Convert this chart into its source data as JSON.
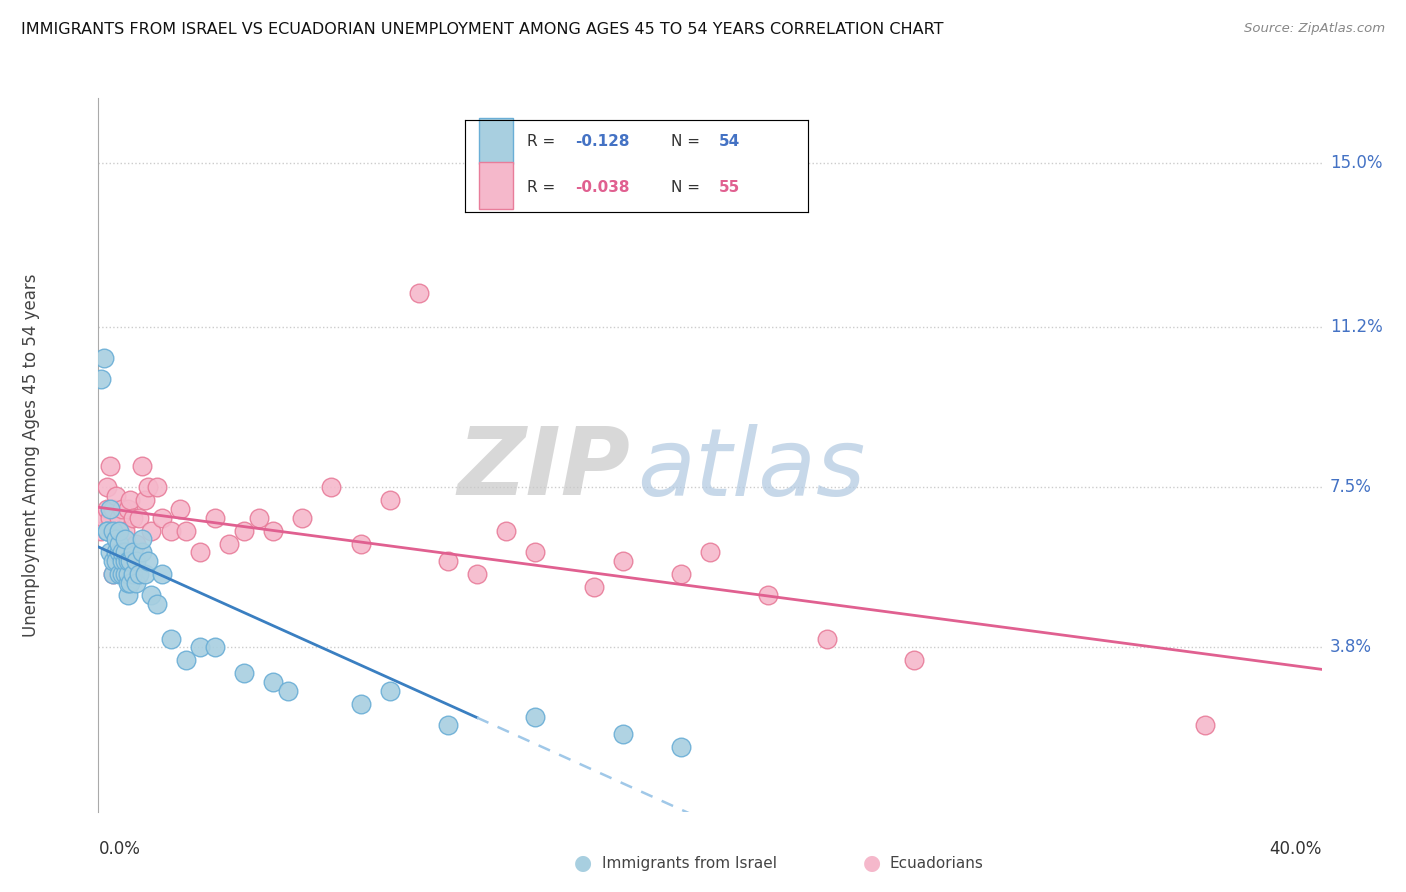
{
  "title": "IMMIGRANTS FROM ISRAEL VS ECUADORIAN UNEMPLOYMENT AMONG AGES 45 TO 54 YEARS CORRELATION CHART",
  "source": "Source: ZipAtlas.com",
  "ylabel_label": "Unemployment Among Ages 45 to 54 years",
  "legend_labels": [
    "Immigrants from Israel",
    "Ecuadorians"
  ],
  "blue_R_val": "-0.128",
  "blue_N_val": "54",
  "pink_R_val": "-0.038",
  "pink_N_val": "55",
  "blue_color": "#a8cfe0",
  "pink_color": "#f5b8cb",
  "blue_edge_color": "#6aaed6",
  "pink_edge_color": "#e87d9a",
  "blue_line_color": "#3a7fc1",
  "pink_line_color": "#e06090",
  "blue_dash_color": "#a0c8e8",
  "watermark_zip_color": "#c8c8c8",
  "watermark_atlas_color": "#b0c8e0",
  "ylim": [
    0.0,
    0.165
  ],
  "xlim": [
    0.0,
    0.42
  ],
  "y_ticks": [
    0.038,
    0.075,
    0.112,
    0.15
  ],
  "y_tick_labels": [
    "3.8%",
    "7.5%",
    "11.2%",
    "15.0%"
  ],
  "blue_scatter_x": [
    0.001,
    0.002,
    0.003,
    0.003,
    0.004,
    0.004,
    0.005,
    0.005,
    0.005,
    0.006,
    0.006,
    0.006,
    0.007,
    0.007,
    0.007,
    0.007,
    0.008,
    0.008,
    0.008,
    0.009,
    0.009,
    0.009,
    0.009,
    0.01,
    0.01,
    0.01,
    0.01,
    0.011,
    0.011,
    0.012,
    0.012,
    0.013,
    0.013,
    0.014,
    0.015,
    0.015,
    0.016,
    0.017,
    0.018,
    0.02,
    0.022,
    0.025,
    0.03,
    0.035,
    0.04,
    0.05,
    0.06,
    0.065,
    0.09,
    0.1,
    0.12,
    0.15,
    0.18,
    0.2
  ],
  "blue_scatter_y": [
    0.1,
    0.105,
    0.065,
    0.065,
    0.06,
    0.07,
    0.055,
    0.058,
    0.065,
    0.06,
    0.058,
    0.063,
    0.055,
    0.06,
    0.062,
    0.065,
    0.055,
    0.058,
    0.06,
    0.055,
    0.058,
    0.06,
    0.063,
    0.05,
    0.053,
    0.055,
    0.058,
    0.053,
    0.058,
    0.055,
    0.06,
    0.053,
    0.058,
    0.055,
    0.06,
    0.063,
    0.055,
    0.058,
    0.05,
    0.048,
    0.055,
    0.04,
    0.035,
    0.038,
    0.038,
    0.032,
    0.03,
    0.028,
    0.025,
    0.028,
    0.02,
    0.022,
    0.018,
    0.015
  ],
  "pink_scatter_x": [
    0.001,
    0.002,
    0.003,
    0.003,
    0.004,
    0.004,
    0.005,
    0.005,
    0.006,
    0.006,
    0.007,
    0.007,
    0.008,
    0.008,
    0.009,
    0.009,
    0.01,
    0.01,
    0.011,
    0.011,
    0.012,
    0.013,
    0.014,
    0.015,
    0.016,
    0.017,
    0.018,
    0.02,
    0.022,
    0.025,
    0.028,
    0.03,
    0.035,
    0.04,
    0.045,
    0.05,
    0.055,
    0.06,
    0.07,
    0.08,
    0.09,
    0.1,
    0.11,
    0.12,
    0.13,
    0.14,
    0.15,
    0.17,
    0.18,
    0.2,
    0.21,
    0.23,
    0.25,
    0.28,
    0.38
  ],
  "pink_scatter_y": [
    0.065,
    0.068,
    0.07,
    0.075,
    0.068,
    0.08,
    0.055,
    0.07,
    0.06,
    0.073,
    0.065,
    0.068,
    0.06,
    0.07,
    0.058,
    0.065,
    0.06,
    0.07,
    0.058,
    0.072,
    0.068,
    0.062,
    0.068,
    0.08,
    0.072,
    0.075,
    0.065,
    0.075,
    0.068,
    0.065,
    0.07,
    0.065,
    0.06,
    0.068,
    0.062,
    0.065,
    0.068,
    0.065,
    0.068,
    0.075,
    0.062,
    0.072,
    0.12,
    0.058,
    0.055,
    0.065,
    0.06,
    0.052,
    0.058,
    0.055,
    0.06,
    0.05,
    0.04,
    0.035,
    0.02
  ]
}
